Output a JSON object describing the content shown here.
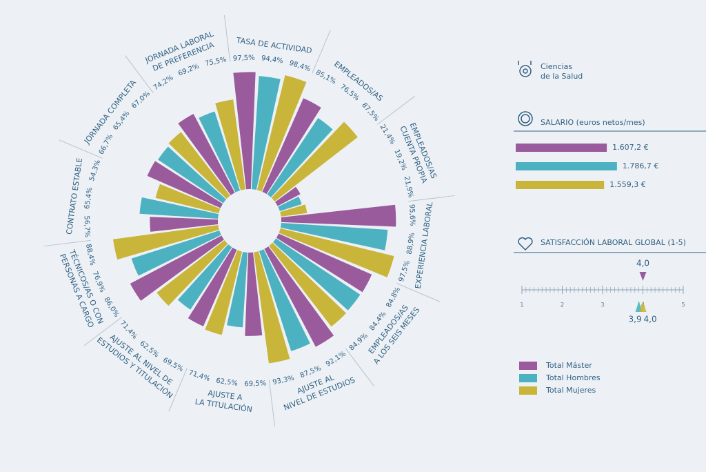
{
  "header": {
    "field": [
      "Ciencias",
      "de la Salud"
    ]
  },
  "chart_data": [
    {
      "type": "radial-bar",
      "categories": [
        [
          "TASA DE ACTIVIDAD"
        ],
        [
          "EMPLEADOS/AS"
        ],
        [
          "EMPLEADOS/AS",
          "CUENTA PROPIA"
        ],
        [
          "EXPERIENCIA LABORAL"
        ],
        [
          "EMPLEADOS/AS",
          "A LOS SEIS MESES"
        ],
        [
          "AJUSTE AL",
          "NIVEL DE ESTUDIOS"
        ],
        [
          "AJUSTE A",
          "LA TITULACIÓN"
        ],
        [
          "AJUSTE AL NIVEL DE",
          "ESTUDIOS Y TITULACIÓN"
        ],
        [
          "TÉCNICOS/AS O CON",
          "PERSONAS A CARGO"
        ],
        [
          "CONTRATO ESTABLE"
        ],
        [
          "JORNADA COMPLETA"
        ],
        [
          "JORNADA LABORAL",
          "DE PREFERENCIA"
        ]
      ],
      "rlim": [
        0,
        100
      ],
      "series": [
        {
          "name": "Total Máster",
          "color": "#9a5b9c",
          "values": [
            97.5,
            85.1,
            21.4,
            95.6,
            84.8,
            92.1,
            69.5,
            69.5,
            86.0,
            56.7,
            66.7,
            74.2
          ],
          "value_labels": [
            "97,5%",
            "85,1%",
            "21,4%",
            "95,6%",
            "84,8%",
            "92,1%",
            "69,5%",
            "69,5%",
            "86,0%",
            "56,7%",
            "66,7%",
            "74,2%"
          ]
        },
        {
          "name": "Total Hombres",
          "color": "#4cb2c2",
          "values": [
            94.4,
            76.5,
            19.2,
            88.9,
            84.4,
            87.5,
            62.5,
            62.5,
            76.9,
            65.4,
            65.4,
            69.2
          ],
          "value_labels": [
            "94,4%",
            "76,5%",
            "19,2%",
            "88,9%",
            "84,4%",
            "87,5%",
            "62,5%",
            "62,5%",
            "76,9%",
            "65,4%",
            "65,4%",
            "69,2%"
          ]
        },
        {
          "name": "Total Mujeres",
          "color": "#c9b53a",
          "values": [
            98.4,
            87.5,
            21.9,
            97.5,
            84.9,
            93.3,
            71.4,
            71.4,
            88.4,
            54.3,
            67.0,
            75.5
          ],
          "value_labels": [
            "98,4%",
            "87,5%",
            "21,9%",
            "97,5%",
            "84,9%",
            "93,3%",
            "71,4%",
            "71,4%",
            "88,4%",
            "54,3%",
            "67,0%",
            "75,5%"
          ]
        }
      ]
    },
    {
      "type": "bar",
      "title": "SALARIO (euros netos/mes)",
      "xlim": [
        0,
        1800
      ],
      "values": [
        1607.2,
        1786.7,
        1559.3
      ],
      "value_labels": [
        "1.607,2 €",
        "1.786,7 €",
        "1.559,3 €"
      ],
      "colors": [
        "#9a5b9c",
        "#4cb2c2",
        "#c9b53a"
      ]
    },
    {
      "type": "scale",
      "title": "SATISFACCIÓN LABORAL GLOBAL (1-5)",
      "xlim": [
        1,
        5
      ],
      "xticks": [
        1,
        2,
        3,
        4,
        5
      ],
      "values": [
        4.0,
        3.9,
        4.0
      ],
      "value_labels": [
        "4,0",
        "3,9",
        "4,0"
      ],
      "colors": [
        "#9a5b9c",
        "#4cb2c2",
        "#c9b53a"
      ]
    }
  ]
}
